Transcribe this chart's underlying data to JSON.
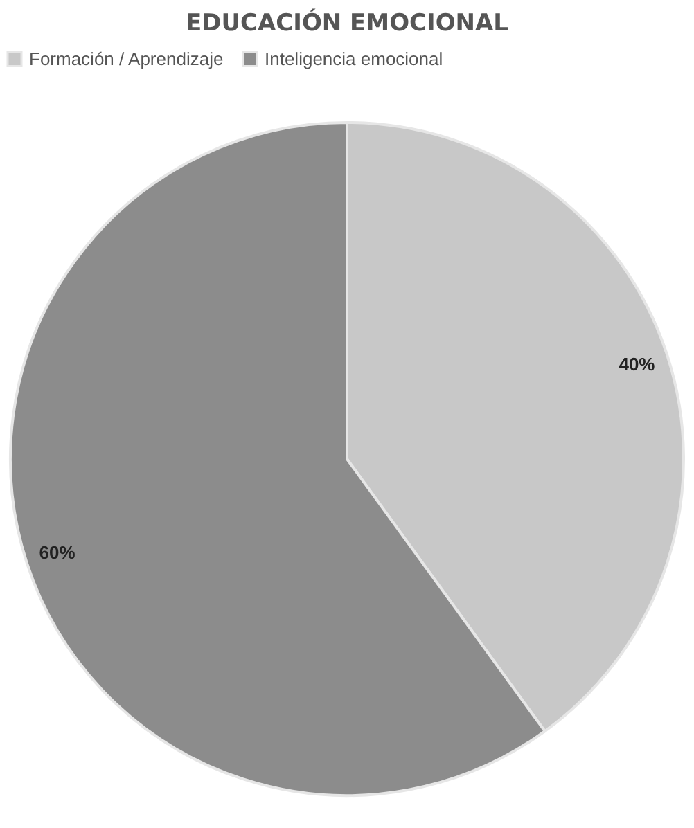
{
  "chart_data": {
    "type": "pie",
    "title": "EDUCACIÓN EMOCIONAL",
    "categories": [
      "Formación / Aprendizaje",
      "Inteligencia emocional"
    ],
    "values": [
      40,
      60
    ],
    "colors": [
      "#c8c8c8",
      "#8c8c8c"
    ],
    "value_labels": [
      "40%",
      "60%"
    ],
    "legend": "top"
  }
}
